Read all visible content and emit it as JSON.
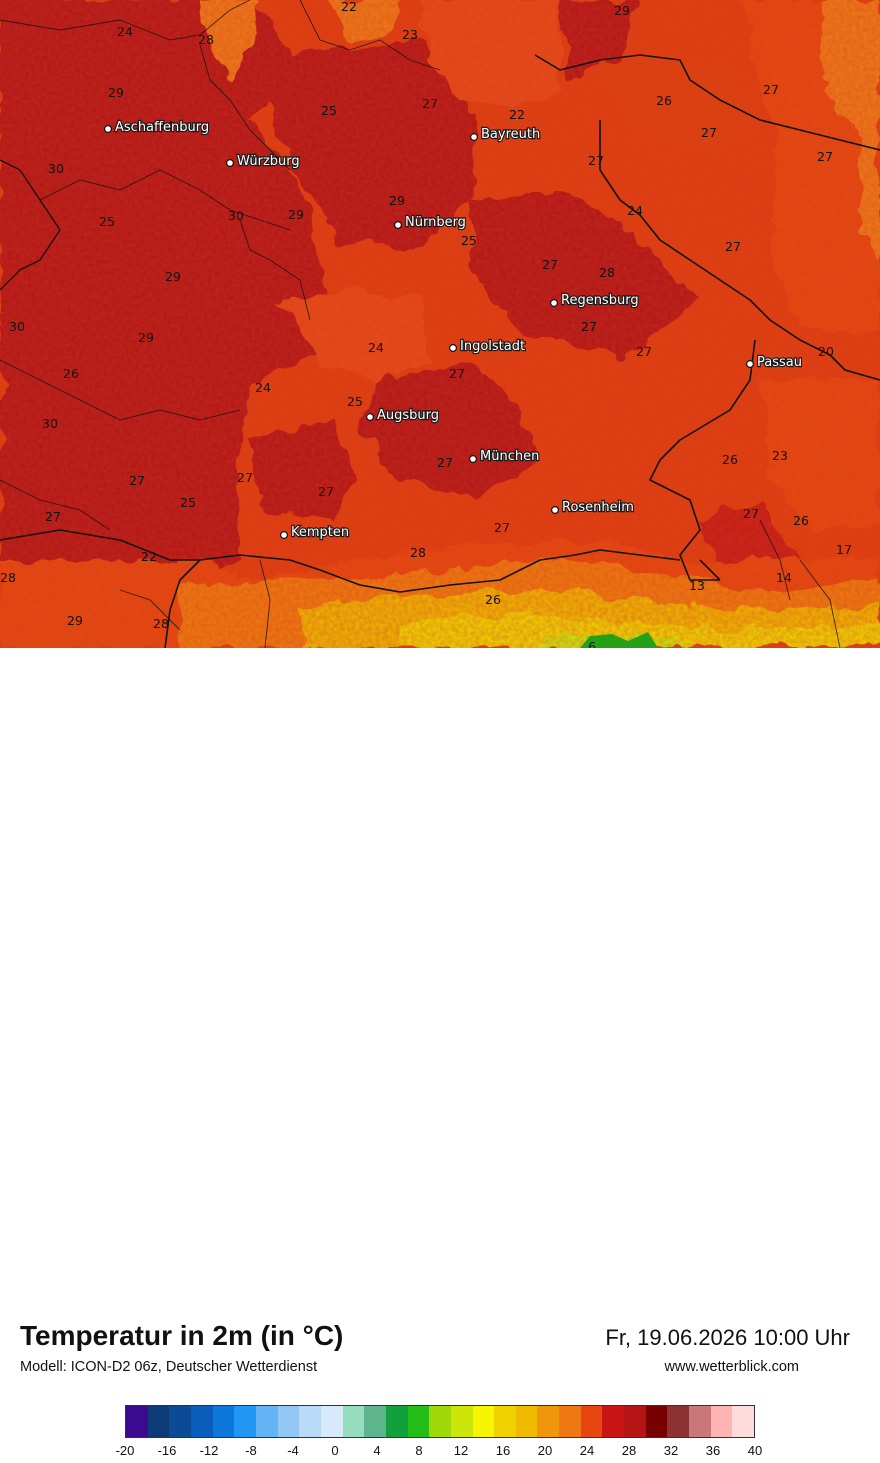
{
  "title": "Temperatur in 2m (in °C)",
  "model": "Modell: ICON-D2 06z, Deutscher Wetterdienst",
  "datetime": "Fr, 19.06.2026 10:00 Uhr",
  "website": "www.wetterblick.com",
  "cities": [
    "Aschaffenburg",
    "Würzburg",
    "Bayreuth",
    "Nürnberg",
    "Regensburg",
    "Ingolstadt",
    "Passau",
    "Augsburg",
    "München",
    "Rosenheim",
    "Kempten"
  ],
  "temperature_labels": [
    "22",
    "29",
    "24",
    "28",
    "23",
    "29",
    "25",
    "27",
    "22",
    "26",
    "27",
    "24",
    "27",
    "30",
    "29",
    "25",
    "30",
    "29",
    "25",
    "27",
    "24",
    "28",
    "27",
    "29",
    "27",
    "27",
    "30",
    "29",
    "24",
    "27",
    "20",
    "26",
    "24",
    "25",
    "30",
    "27",
    "27",
    "26",
    "23",
    "25",
    "27",
    "27",
    "27",
    "27",
    "27",
    "27",
    "26",
    "22",
    "28",
    "27",
    "17",
    "28",
    "14",
    "13",
    "29",
    "28",
    "26",
    "6"
  ],
  "legend": {
    "colors": [
      "#3c0a8f",
      "#0f3a78",
      "#0b4a94",
      "#0b5dbb",
      "#0d78dc",
      "#2196f3",
      "#64b4f5",
      "#93c8f6",
      "#b9dbf8",
      "#d6eafb",
      "#96dcbe",
      "#5eb48c",
      "#12a03c",
      "#24bc16",
      "#a0d90a",
      "#cce60a",
      "#f5f500",
      "#f0d200",
      "#f0ba00",
      "#f0960a",
      "#f07814",
      "#e8460f",
      "#c81414",
      "#b41414",
      "#780000",
      "#8c3232",
      "#c87878",
      "#ffb4b4",
      "#ffdcdc"
    ],
    "ticks": [
      "-20",
      "-16",
      "-12",
      "-8",
      "-4",
      "0",
      "4",
      "8",
      "12",
      "16",
      "20",
      "24",
      "28",
      "32",
      "36",
      "40"
    ]
  }
}
